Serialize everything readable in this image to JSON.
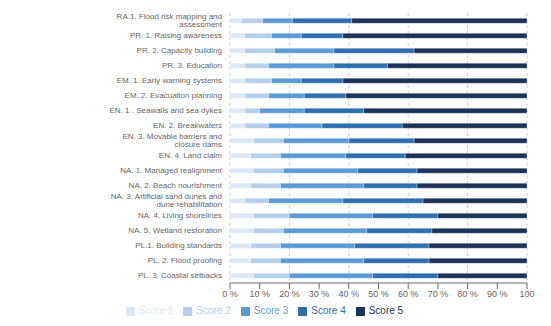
{
  "chart_data": {
    "type": "bar",
    "orientation": "horizontal",
    "stacked": true,
    "grid": true,
    "legend": "bottom",
    "categories": [
      "RA.1. Flood risk mapping and assessment",
      "PR. 1. Raising awareness",
      "PR. 2. Capacity building",
      "PR. 3. Education",
      "EM. 1. Early warning systems",
      "EM. 2. Evacuation planning",
      "EN. 1 . Seawalls and sea dykes",
      "EN. 2. Breakwaters",
      "EN. 3. Movable barriers and closure dams",
      "EN. 4. Land claim",
      "NA. 1. Managed realignment",
      "NA. 2. Beach nourishment",
      "NA. 3. Artificial sand dunes and dune rehabilitation",
      "NA. 4. Living shorelines",
      "NA. 5. Wetland restoration",
      "PL.1. Building standards",
      "PL. 2. Flood proofing",
      "PL. 3. Coastal setbacks"
    ],
    "series": [
      {
        "name": "Score 1",
        "color": "#dce9f5",
        "values": [
          4,
          5,
          5,
          5,
          5,
          5,
          5,
          5,
          8,
          7,
          8,
          7,
          5,
          8,
          8,
          7,
          7,
          8
        ]
      },
      {
        "name": "Score 2",
        "color": "#b3cfea",
        "values": [
          7,
          9,
          10,
          8,
          9,
          8,
          5,
          8,
          10,
          10,
          10,
          10,
          8,
          12,
          10,
          10,
          10,
          12
        ]
      },
      {
        "name": "Score 3",
        "color": "#5b9bd5",
        "values": [
          10,
          10,
          20,
          22,
          10,
          12,
          15,
          18,
          22,
          22,
          25,
          28,
          25,
          28,
          28,
          25,
          28,
          28
        ]
      },
      {
        "name": "Score 4",
        "color": "#2e6fad",
        "values": [
          20,
          14,
          27,
          18,
          14,
          14,
          20,
          27,
          22,
          20,
          20,
          18,
          27,
          22,
          22,
          25,
          22,
          22
        ]
      },
      {
        "name": "Score 5",
        "color": "#1a3356",
        "values": [
          59,
          62,
          38,
          47,
          62,
          61,
          55,
          42,
          38,
          41,
          37,
          37,
          35,
          30,
          32,
          33,
          33,
          30
        ]
      }
    ],
    "xlim": [
      0,
      100
    ],
    "xticks": [
      {
        "value": 0,
        "label": "0 %"
      },
      {
        "value": 10,
        "label": "10 %"
      },
      {
        "value": 20,
        "label": "20 %"
      },
      {
        "value": 30,
        "label": "30 %"
      },
      {
        "value": 40,
        "label": "40 %"
      },
      {
        "value": 50,
        "label": "50 %"
      },
      {
        "value": 60,
        "label": "60 %"
      },
      {
        "value": 70,
        "label": "70 %"
      },
      {
        "value": 80,
        "label": "80 %"
      },
      {
        "value": 90,
        "label": "90 %"
      },
      100
    ]
  }
}
